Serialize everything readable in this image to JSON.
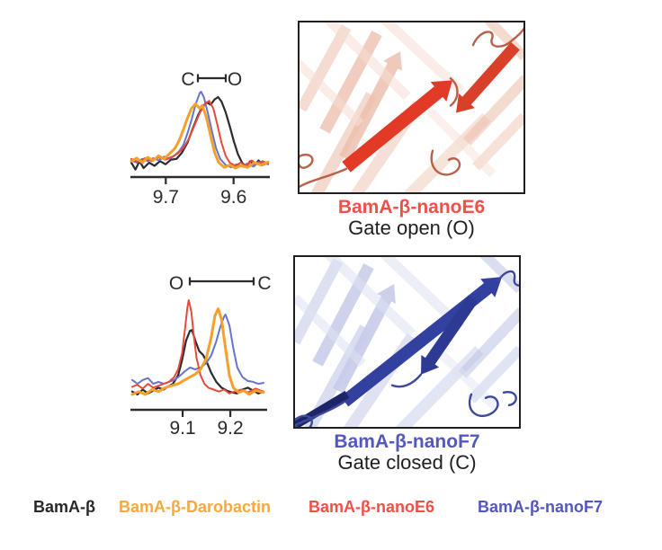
{
  "figure": {
    "background": "#ffffff",
    "panels": {
      "open": {
        "structure_label": "BamA-β-nanoE6",
        "structure_label_color": "#ef5048",
        "gate_label": "Gate open (O)"
      },
      "closed": {
        "structure_label": "BamA-β-nanoF7",
        "structure_label_color": "#5358bc",
        "gate_label": "Gate closed (C)"
      }
    }
  },
  "legend": {
    "items": [
      {
        "label": "BamA-β",
        "color": "#28282c"
      },
      {
        "label": "BamA-β-Darobactin",
        "color": "#f9a83d"
      },
      {
        "label": "BamA-β-nanoE6",
        "color": "#ef5048"
      },
      {
        "label": "BamA-β-nanoF7",
        "color": "#5358bc"
      }
    ]
  },
  "palette": {
    "black": "#2b2b2b",
    "orange": "#f5a02b",
    "red": "#e74a3c",
    "blue": "#6774cb",
    "axis": "#2b2b2b"
  },
  "chart_data": [
    {
      "type": "line",
      "id": "nmr-spectrum-gate-open",
      "title": "",
      "xlabel": "",
      "ylabel": "",
      "x_axis_reversed": true,
      "annotation": {
        "left": "C",
        "right": "O",
        "meaning": "chemical-shift interval between closed (C) and open (O) gate peaks"
      },
      "x_ticks": [
        {
          "label": "9.7",
          "pos": 0.252
        },
        {
          "label": "9.6",
          "pos": 0.748
        }
      ],
      "series": [
        {
          "name": "BamA-β",
          "color": "#2b2b2b",
          "width": 2.2,
          "peak_ppm": 9.62,
          "points": [
            [
              0,
              0.07
            ],
            [
              0.03,
              -0.02
            ],
            [
              0.06,
              0.09
            ],
            [
              0.09,
              0
            ],
            [
              0.13,
              0.07
            ],
            [
              0.17,
              0.03
            ],
            [
              0.21,
              0.09
            ],
            [
              0.25,
              0.05
            ],
            [
              0.29,
              0.11
            ],
            [
              0.33,
              0.12
            ],
            [
              0.37,
              0.2
            ],
            [
              0.41,
              0.33
            ],
            [
              0.45,
              0.52
            ],
            [
              0.49,
              0.7
            ],
            [
              0.52,
              0.8
            ],
            [
              0.55,
              0.86
            ],
            [
              0.58,
              0.83
            ],
            [
              0.61,
              0.9
            ],
            [
              0.635,
              0.93
            ],
            [
              0.66,
              0.87
            ],
            [
              0.69,
              0.73
            ],
            [
              0.72,
              0.55
            ],
            [
              0.75,
              0.35
            ],
            [
              0.78,
              0.18
            ],
            [
              0.81,
              0.07
            ],
            [
              0.84,
              0.02
            ],
            [
              0.87,
              0.09
            ],
            [
              0.9,
              0.03
            ],
            [
              0.93,
              0.1
            ],
            [
              0.96,
              0.04
            ],
            [
              1,
              0.07
            ]
          ]
        },
        {
          "name": "BamA-β-nanoF7",
          "color": "#6774cb",
          "width": 2.0,
          "peak_ppm": 9.65,
          "points": [
            [
              0,
              0.1
            ],
            [
              0.04,
              0.07
            ],
            [
              0.08,
              0.12
            ],
            [
              0.12,
              0.09
            ],
            [
              0.16,
              0.13
            ],
            [
              0.2,
              0.1
            ],
            [
              0.24,
              0.15
            ],
            [
              0.28,
              0.12
            ],
            [
              0.32,
              0.17
            ],
            [
              0.35,
              0.22
            ],
            [
              0.38,
              0.3
            ],
            [
              0.41,
              0.45
            ],
            [
              0.44,
              0.63
            ],
            [
              0.47,
              0.83
            ],
            [
              0.5,
              0.98
            ],
            [
              0.51,
              1
            ],
            [
              0.53,
              0.93
            ],
            [
              0.56,
              0.72
            ],
            [
              0.59,
              0.48
            ],
            [
              0.62,
              0.26
            ],
            [
              0.65,
              0.12
            ],
            [
              0.69,
              0.04
            ],
            [
              0.73,
              0.01
            ],
            [
              0.77,
              0.05
            ],
            [
              0.81,
              0.02
            ],
            [
              0.85,
              0.06
            ],
            [
              0.89,
              0.02
            ],
            [
              0.93,
              0.08
            ],
            [
              1,
              0.05
            ]
          ]
        },
        {
          "name": "BamA-β-nanoE6",
          "color": "#e74a3c",
          "width": 2.0,
          "peak_ppm": 9.64,
          "points": [
            [
              0,
              0.12
            ],
            [
              0.05,
              0.08
            ],
            [
              0.1,
              0.13
            ],
            [
              0.15,
              0.09
            ],
            [
              0.2,
              0.14
            ],
            [
              0.25,
              0.11
            ],
            [
              0.3,
              0.15
            ],
            [
              0.34,
              0.19
            ],
            [
              0.38,
              0.26
            ],
            [
              0.42,
              0.38
            ],
            [
              0.46,
              0.55
            ],
            [
              0.5,
              0.72
            ],
            [
              0.54,
              0.84
            ],
            [
              0.57,
              0.88
            ],
            [
              0.6,
              0.78
            ],
            [
              0.63,
              0.56
            ],
            [
              0.66,
              0.33
            ],
            [
              0.69,
              0.16
            ],
            [
              0.72,
              0.07
            ],
            [
              0.76,
              0.03
            ],
            [
              0.8,
              0.07
            ],
            [
              0.84,
              0.03
            ],
            [
              0.88,
              0.1
            ],
            [
              0.92,
              0.05
            ],
            [
              0.96,
              0.09
            ],
            [
              1,
              0.06
            ]
          ]
        },
        {
          "name": "BamA-β-Darobactin",
          "color": "#f5a02b",
          "width": 3.0,
          "peak_ppm": 9.65,
          "points": [
            [
              0,
              0.09
            ],
            [
              0.04,
              0.13
            ],
            [
              0.08,
              0.07
            ],
            [
              0.12,
              0.14
            ],
            [
              0.16,
              0.1
            ],
            [
              0.2,
              0.16
            ],
            [
              0.24,
              0.12
            ],
            [
              0.28,
              0.19
            ],
            [
              0.32,
              0.26
            ],
            [
              0.35,
              0.36
            ],
            [
              0.38,
              0.5
            ],
            [
              0.41,
              0.65
            ],
            [
              0.44,
              0.78
            ],
            [
              0.47,
              0.84
            ],
            [
              0.5,
              0.78
            ],
            [
              0.52,
              0.82
            ],
            [
              0.55,
              0.66
            ],
            [
              0.58,
              0.42
            ],
            [
              0.61,
              0.2
            ],
            [
              0.64,
              0.07
            ],
            [
              0.68,
              0.01
            ],
            [
              0.72,
              0.04
            ],
            [
              0.76,
              0
            ],
            [
              0.8,
              0.03
            ],
            [
              0.85,
              0.01
            ],
            [
              0.9,
              0.07
            ],
            [
              0.95,
              0.04
            ],
            [
              1,
              0.08
            ]
          ]
        }
      ]
    },
    {
      "type": "line",
      "id": "nmr-spectrum-gate-closed",
      "title": "",
      "xlabel": "",
      "ylabel": "",
      "x_axis_reversed": false,
      "annotation": {
        "left": "O",
        "right": "C",
        "meaning": "chemical-shift interval between open (O) and closed (C) gate peaks"
      },
      "x_ticks": [
        {
          "label": "9.1",
          "pos": 0.384
        },
        {
          "label": "9.2",
          "pos": 0.747
        }
      ],
      "series": [
        {
          "name": "BamA-β",
          "color": "#2b2b2b",
          "width": 2.2,
          "peak_ppm": 9.12,
          "points": [
            [
              0,
              0.05
            ],
            [
              0.04,
              0.02
            ],
            [
              0.08,
              0.07
            ],
            [
              0.12,
              0.03
            ],
            [
              0.16,
              0.06
            ],
            [
              0.2,
              0.09
            ],
            [
              0.24,
              0.07
            ],
            [
              0.27,
              0.1
            ],
            [
              0.31,
              0.13
            ],
            [
              0.35,
              0.22
            ],
            [
              0.38,
              0.38
            ],
            [
              0.41,
              0.58
            ],
            [
              0.44,
              0.68
            ],
            [
              0.455,
              0.69
            ],
            [
              0.48,
              0.58
            ],
            [
              0.51,
              0.47
            ],
            [
              0.54,
              0.43
            ],
            [
              0.57,
              0.35
            ],
            [
              0.6,
              0.25
            ],
            [
              0.64,
              0.15
            ],
            [
              0.68,
              0.09
            ],
            [
              0.72,
              0.06
            ],
            [
              0.76,
              0.04
            ],
            [
              0.8,
              0.03
            ],
            [
              0.84,
              0.07
            ],
            [
              0.88,
              0.09
            ],
            [
              0.92,
              0.06
            ],
            [
              0.96,
              0.03
            ],
            [
              1,
              0.05
            ]
          ]
        },
        {
          "name": "BamA-β-nanoF7",
          "color": "#6774cb",
          "width": 2.0,
          "peak_ppm": 9.19,
          "points": [
            [
              0,
              0.17
            ],
            [
              0.04,
              0.13
            ],
            [
              0.08,
              0.17
            ],
            [
              0.12,
              0.19
            ],
            [
              0.16,
              0.13
            ],
            [
              0.2,
              0.15
            ],
            [
              0.24,
              0.13
            ],
            [
              0.28,
              0.15
            ],
            [
              0.32,
              0.17
            ],
            [
              0.36,
              0.21
            ],
            [
              0.4,
              0.26
            ],
            [
              0.44,
              0.3
            ],
            [
              0.48,
              0.28
            ],
            [
              0.52,
              0.3
            ],
            [
              0.56,
              0.34
            ],
            [
              0.6,
              0.42
            ],
            [
              0.64,
              0.57
            ],
            [
              0.67,
              0.72
            ],
            [
              0.7,
              0.83
            ],
            [
              0.71,
              0.85
            ],
            [
              0.74,
              0.74
            ],
            [
              0.77,
              0.5
            ],
            [
              0.8,
              0.3
            ],
            [
              0.84,
              0.2
            ],
            [
              0.88,
              0.16
            ],
            [
              0.92,
              0.15
            ],
            [
              0.96,
              0.13
            ],
            [
              1,
              0.14
            ]
          ]
        },
        {
          "name": "BamA-β-nanoE6",
          "color": "#e74a3c",
          "width": 2.0,
          "peak_ppm": 9.11,
          "points": [
            [
              0,
              0.1
            ],
            [
              0.04,
              0.12
            ],
            [
              0.08,
              0.08
            ],
            [
              0.12,
              0.13
            ],
            [
              0.16,
              0.09
            ],
            [
              0.2,
              0.11
            ],
            [
              0.24,
              0.13
            ],
            [
              0.28,
              0.15
            ],
            [
              0.32,
              0.2
            ],
            [
              0.35,
              0.28
            ],
            [
              0.38,
              0.45
            ],
            [
              0.4,
              0.68
            ],
            [
              0.42,
              0.92
            ],
            [
              0.43,
              1
            ],
            [
              0.45,
              0.88
            ],
            [
              0.47,
              0.62
            ],
            [
              0.49,
              0.4
            ],
            [
              0.52,
              0.22
            ],
            [
              0.55,
              0.13
            ],
            [
              0.58,
              0.09
            ],
            [
              0.62,
              0.07
            ],
            [
              0.66,
              0.05
            ],
            [
              0.7,
              0.07
            ],
            [
              0.74,
              0.03
            ],
            [
              0.78,
              0.05
            ],
            [
              0.83,
              0.07
            ],
            [
              0.88,
              0.04
            ],
            [
              0.94,
              0.08
            ],
            [
              1,
              0.05
            ]
          ]
        },
        {
          "name": "BamA-β-Darobactin",
          "color": "#f5a02b",
          "width": 3.0,
          "peak_ppm": 9.18,
          "points": [
            [
              0,
              0.02
            ],
            [
              0.05,
              0.05
            ],
            [
              0.1,
              0.02
            ],
            [
              0.15,
              0.07
            ],
            [
              0.2,
              0.05
            ],
            [
              0.25,
              0.09
            ],
            [
              0.3,
              0.11
            ],
            [
              0.35,
              0.13
            ],
            [
              0.4,
              0.17
            ],
            [
              0.44,
              0.2
            ],
            [
              0.48,
              0.23
            ],
            [
              0.52,
              0.28
            ],
            [
              0.56,
              0.38
            ],
            [
              0.6,
              0.6
            ],
            [
              0.63,
              0.84
            ],
            [
              0.655,
              0.91
            ],
            [
              0.68,
              0.8
            ],
            [
              0.71,
              0.5
            ],
            [
              0.74,
              0.22
            ],
            [
              0.77,
              0.09
            ],
            [
              0.81,
              0.04
            ],
            [
              0.85,
              0.06
            ],
            [
              0.89,
              0.02
            ],
            [
              0.94,
              0.06
            ],
            [
              1,
              0.04
            ]
          ]
        }
      ]
    }
  ]
}
